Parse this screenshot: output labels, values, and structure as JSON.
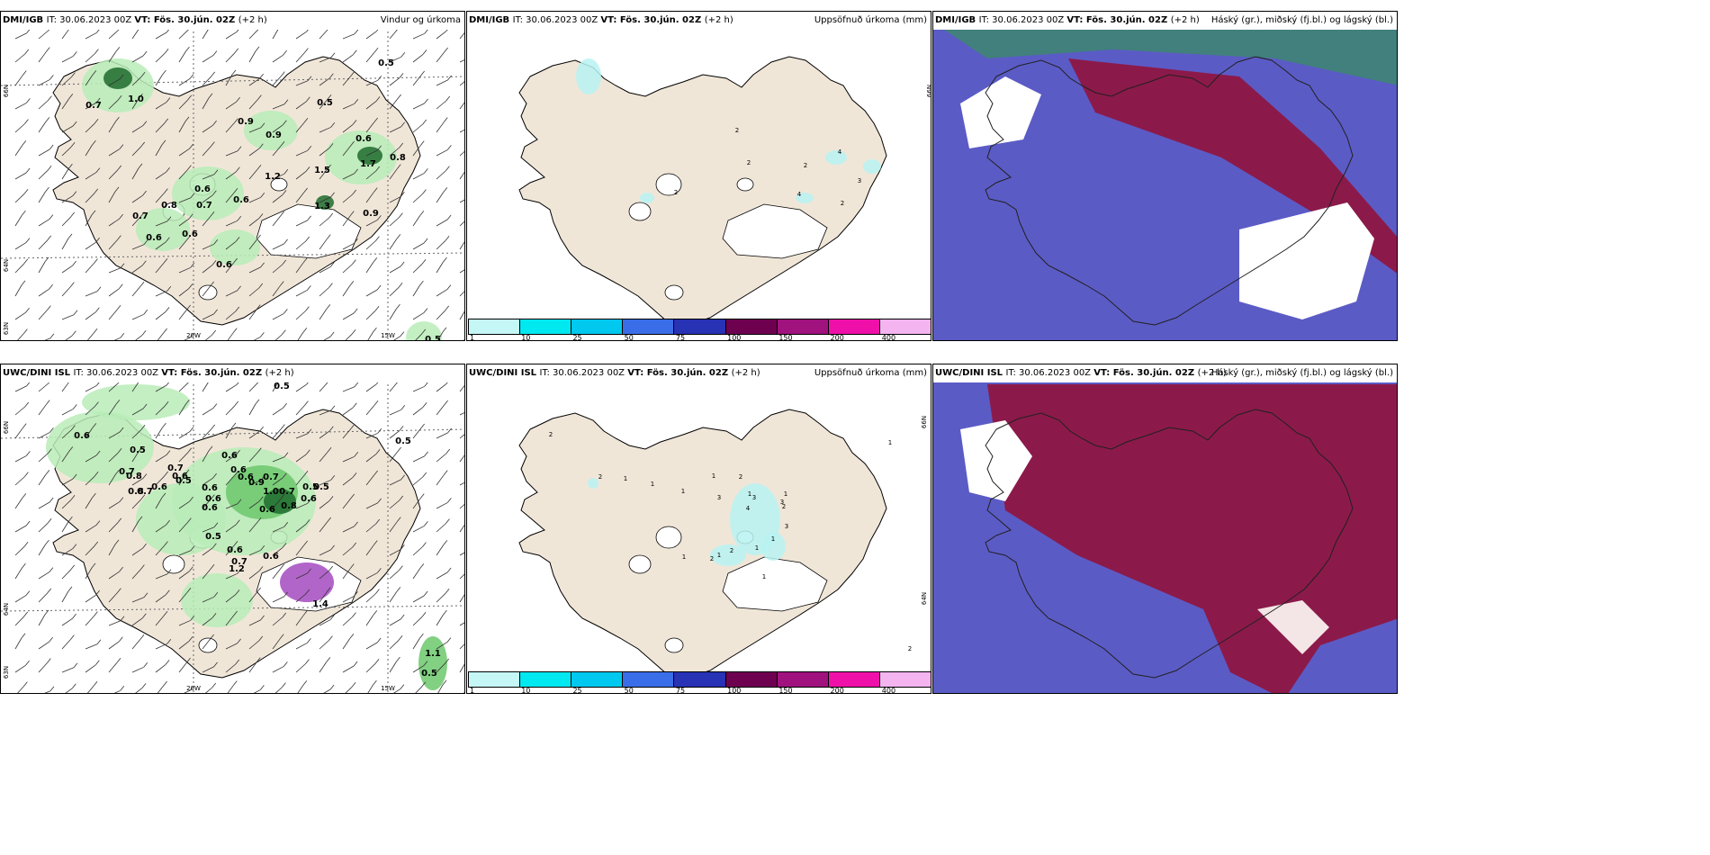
{
  "colors": {
    "land": "#f0e6d8",
    "sea_cloud": "#5b5bc6",
    "high_cloud": "#8b1a4a",
    "rain_light": "#b8ecb8",
    "rain_mid": "#6cc86c",
    "rain_dark": "#1e6b2e"
  },
  "panels": [
    {
      "id": "dmi-wind",
      "header_model": "DMI/IGB",
      "header_it": "IT: 30.06.2023 00Z",
      "header_vt": "VT: Fös. 30.jún. 02Z",
      "header_lead": "(+2 h)",
      "header_right": "Vindur og úrkoma",
      "lat_labels": [
        "66N",
        "64N",
        "63N"
      ],
      "lon_labels": [
        "20W",
        "15W"
      ],
      "values": [
        "0.5",
        "0.7",
        "1.0",
        "0.9",
        "0.9",
        "0.5",
        "0.6",
        "0.8",
        "1.5",
        "1.2",
        "1.7",
        "0.6",
        "0.8",
        "0.7",
        "0.7",
        "0.6",
        "1.3",
        "0.9",
        "0.6",
        "0.6",
        "0.6",
        "0.5"
      ]
    },
    {
      "id": "dmi-precip",
      "header_model": "DMI/IGB",
      "header_it": "IT: 30.06.2023 00Z",
      "header_vt": "VT: Fös. 30.jún. 02Z",
      "header_lead": "(+2 h)",
      "header_right": "Uppsöfnuð úrkoma (mm)",
      "lat_labels": [
        "66N"
      ],
      "values": [
        "2",
        "2",
        "4",
        "2",
        "3",
        "2",
        "4",
        "2"
      ],
      "legend": [
        "1",
        "10",
        "25",
        "50",
        "75",
        "100",
        "150",
        "200",
        "400"
      ]
    },
    {
      "id": "dmi-cloud",
      "header_model": "DMI/IGB",
      "header_it": "IT: 30.06.2023 00Z",
      "header_vt": "VT: Fös. 30.jún. 02Z",
      "header_lead": "(+2 h)",
      "header_right": "Háský (gr.), miðský (fj.bl.) og lágský (bl.)"
    },
    {
      "id": "uwc-wind",
      "header_model": "UWC/DINI ISL",
      "header_it": "IT: 30.06.2023 00Z",
      "header_vt": "VT: Fös. 30.jún. 02Z",
      "header_lead": "(+2 h)",
      "lat_labels": [
        "66N",
        "64N",
        "63N"
      ],
      "lon_labels": [
        "20W",
        "15W"
      ],
      "values": [
        "0.5",
        "0.6",
        "0.5",
        "0.7",
        "0.8",
        "0.6",
        "0.7",
        "0.6",
        "0.5",
        "0.6",
        "0.6",
        "0.7",
        "0.9",
        "0.6",
        "1.0",
        "0.7",
        "0.6",
        "0.5",
        "0.8",
        "0.7",
        "0.6",
        "0.6",
        "0.5",
        "0.6",
        "0.6",
        "0.8",
        "0.5",
        "0.6",
        "0.7",
        "1.2",
        "0.6",
        "1.4",
        "1.1",
        "0.5",
        "0.5"
      ]
    },
    {
      "id": "uwc-precip",
      "header_model": "UWC/DINI ISL",
      "header_it": "IT: 30.06.2023 00Z",
      "header_vt": "VT: Fös. 30.jún. 02Z",
      "header_lead": "(+2 h)",
      "header_right": "Uppsöfnuð úrkoma (mm)",
      "lat_labels": [
        "66N",
        "64N"
      ],
      "values": [
        "2",
        "1",
        "2",
        "1",
        "1",
        "2",
        "1",
        "1",
        "3",
        "4",
        "1",
        "3",
        "1",
        "3",
        "2",
        "3",
        "1",
        "2",
        "1",
        "2",
        "1",
        "1",
        "1",
        "2"
      ],
      "legend": [
        "1",
        "10",
        "25",
        "50",
        "75",
        "100",
        "150",
        "200",
        "400"
      ]
    },
    {
      "id": "uwc-cloud",
      "header_model": "UWC/DINI ISL",
      "header_it": "IT: 30.06.2023 00Z",
      "header_vt": "VT: Fös. 30.jún. 02Z",
      "header_lead": "(+2 h)",
      "header_right": "Háský (gr.), miðský (fj.bl.) og lágský (bl.)"
    }
  ],
  "legend_colors": [
    "#c6f7f7",
    "#00e8f0",
    "#00c8ee",
    "#3a6ee8",
    "#2832b4",
    "#6e0050",
    "#a0127e",
    "#ee10a8",
    "#f4b4f0"
  ]
}
